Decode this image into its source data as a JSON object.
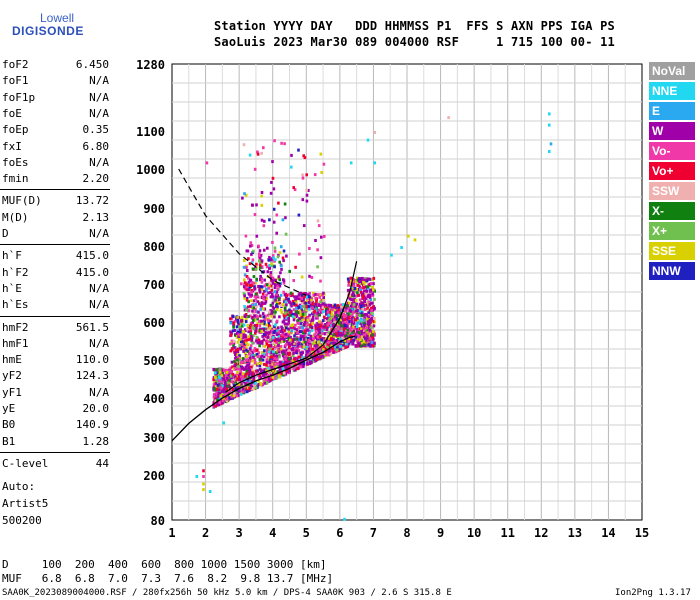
{
  "logo": {
    "line1": "Lowell",
    "line2": "DIGISONDE"
  },
  "header": {
    "line1": "Station YYYY DAY   DDD HHMMSS P1  FFS S AXN PPS IGA PS",
    "line2": "SaoLuis 2023 Mar30 089 004000 RSF     1 715 100 00- 11"
  },
  "params": [
    {
      "name": "foF2",
      "value": "6.450"
    },
    {
      "name": "foF1",
      "value": "N/A"
    },
    {
      "name": "foF1p",
      "value": "N/A"
    },
    {
      "name": "foE",
      "value": "N/A"
    },
    {
      "name": "foEp",
      "value": "0.35"
    },
    {
      "name": "fxI",
      "value": "6.80"
    },
    {
      "name": "foEs",
      "value": "N/A"
    },
    {
      "name": "fmin",
      "value": "2.20"
    },
    {
      "name": "MUF(D)",
      "value": "13.72"
    },
    {
      "name": "M(D)",
      "value": "2.13"
    },
    {
      "name": "D",
      "value": "N/A"
    },
    {
      "name": "h`F",
      "value": "415.0"
    },
    {
      "name": "h`F2",
      "value": "415.0"
    },
    {
      "name": "h`E",
      "value": "N/A"
    },
    {
      "name": "h`Es",
      "value": "N/A"
    },
    {
      "name": "hmF2",
      "value": "561.5"
    },
    {
      "name": "hmF1",
      "value": "N/A"
    },
    {
      "name": "hmE",
      "value": "110.0"
    },
    {
      "name": "yF2",
      "value": "124.3"
    },
    {
      "name": "yF1",
      "value": "N/A"
    },
    {
      "name": "yE",
      "value": "20.0"
    },
    {
      "name": "B0",
      "value": "140.9"
    },
    {
      "name": "B1",
      "value": "1.28"
    },
    {
      "name": "C-level",
      "value": "44"
    }
  ],
  "notes": {
    "auto": "Auto:",
    "artist": "Artist5",
    "code": "500200"
  },
  "legend": [
    {
      "label": "NoVal",
      "color": "#a0a0a0"
    },
    {
      "label": "NNE",
      "color": "#22d8f0"
    },
    {
      "label": "E",
      "color": "#2aa8f0"
    },
    {
      "label": "W",
      "color": "#a000a8"
    },
    {
      "label": "Vo-",
      "color": "#f038a8"
    },
    {
      "label": "Vo+",
      "color": "#f00030"
    },
    {
      "label": "SSW",
      "color": "#f0b0b0"
    },
    {
      "label": "X-",
      "color": "#108010"
    },
    {
      "label": "X+",
      "color": "#70c050"
    },
    {
      "label": "SSE",
      "color": "#d8d000"
    },
    {
      "label": "NNW",
      "color": "#2020c0"
    }
  ],
  "footer": {
    "d_line": "D     100  200  400  600  800 1000 1500 3000 [km]",
    "muf_line": "MUF   6.8  6.8  7.0  7.3  7.6  8.2  9.8 13.7 [MHz]",
    "file_info": "SAA0K_2023089004000.RSF / 280fx256h 50 kHz 5.0 km / DPS-4 SAA0K 903 / 2.6 S 315.8 E",
    "version": "Ion2Png 1.3.17"
  },
  "chart_data": {
    "type": "scatter",
    "xlim": [
      1,
      15
    ],
    "ylim": [
      80,
      1280
    ],
    "x_ticks": [
      "1",
      "2",
      "3",
      "4",
      "5",
      "6",
      "7",
      "8",
      "9",
      "10",
      "11",
      "12",
      "13",
      "14",
      "15"
    ],
    "y_ticks": [
      "80",
      "200",
      "300",
      "400",
      "500",
      "600",
      "700",
      "800",
      "900",
      "1000",
      "1100",
      "1280"
    ],
    "y_scale": "frequency-dependent height (nonlinear)",
    "grid": true,
    "legend_position": "right",
    "profile_solid": {
      "x": [
        1.0,
        1.5,
        2.0,
        2.5,
        3.0,
        3.5,
        4.0,
        4.5,
        5.0,
        5.5,
        6.0,
        6.3,
        6.45
      ],
      "y": [
        290,
        335,
        370,
        400,
        425,
        445,
        460,
        478,
        500,
        520,
        548,
        560,
        562
      ]
    },
    "trace_o": {
      "x": [
        2.6,
        3.0,
        3.5,
        4.0,
        4.5,
        5.0,
        5.5,
        6.0,
        6.3,
        6.5
      ],
      "y": [
        415,
        440,
        460,
        475,
        490,
        505,
        540,
        610,
        680,
        760
      ]
    },
    "extraordinary_dashed": {
      "x": [
        1.2,
        1.6,
        2.0,
        2.5,
        3.0,
        3.5,
        4.0,
        4.5,
        5.0
      ],
      "y": [
        1000,
        940,
        880,
        830,
        780,
        745,
        710,
        690,
        670
      ]
    },
    "echo_cloud": {
      "x_range": [
        2.2,
        7.0
      ],
      "y_range": [
        400,
        700
      ]
    },
    "isolated_echoes": [
      {
        "x": 1.9,
        "y": 215,
        "mode": "Vo+"
      },
      {
        "x": 1.9,
        "y": 200,
        "mode": "Vo-"
      },
      {
        "x": 1.9,
        "y": 180,
        "mode": "SSE"
      },
      {
        "x": 1.9,
        "y": 165,
        "mode": "SSE"
      },
      {
        "x": 2.1,
        "y": 160,
        "mode": "NNE"
      },
      {
        "x": 1.7,
        "y": 200,
        "mode": "NNE"
      },
      {
        "x": 2.5,
        "y": 340,
        "mode": "NNE"
      },
      {
        "x": 6.1,
        "y": 86,
        "mode": "NNE"
      },
      {
        "x": 12.2,
        "y": 1150,
        "mode": "NNE"
      },
      {
        "x": 12.2,
        "y": 1120,
        "mode": "NNE"
      },
      {
        "x": 12.25,
        "y": 1070,
        "mode": "E"
      },
      {
        "x": 12.2,
        "y": 1050,
        "mode": "NNE"
      },
      {
        "x": 9.2,
        "y": 1140,
        "mode": "SSW"
      },
      {
        "x": 7.0,
        "y": 1100,
        "mode": "SSW"
      },
      {
        "x": 7.0,
        "y": 1020,
        "mode": "NNE"
      },
      {
        "x": 6.3,
        "y": 1020,
        "mode": "NNE"
      },
      {
        "x": 6.8,
        "y": 1080,
        "mode": "NNE"
      },
      {
        "x": 8.0,
        "y": 830,
        "mode": "SSE"
      },
      {
        "x": 8.2,
        "y": 820,
        "mode": "SSE"
      },
      {
        "x": 7.8,
        "y": 800,
        "mode": "NNE"
      },
      {
        "x": 7.5,
        "y": 780,
        "mode": "NNE"
      },
      {
        "x": 2.0,
        "y": 1020,
        "mode": "Vo-"
      }
    ]
  }
}
